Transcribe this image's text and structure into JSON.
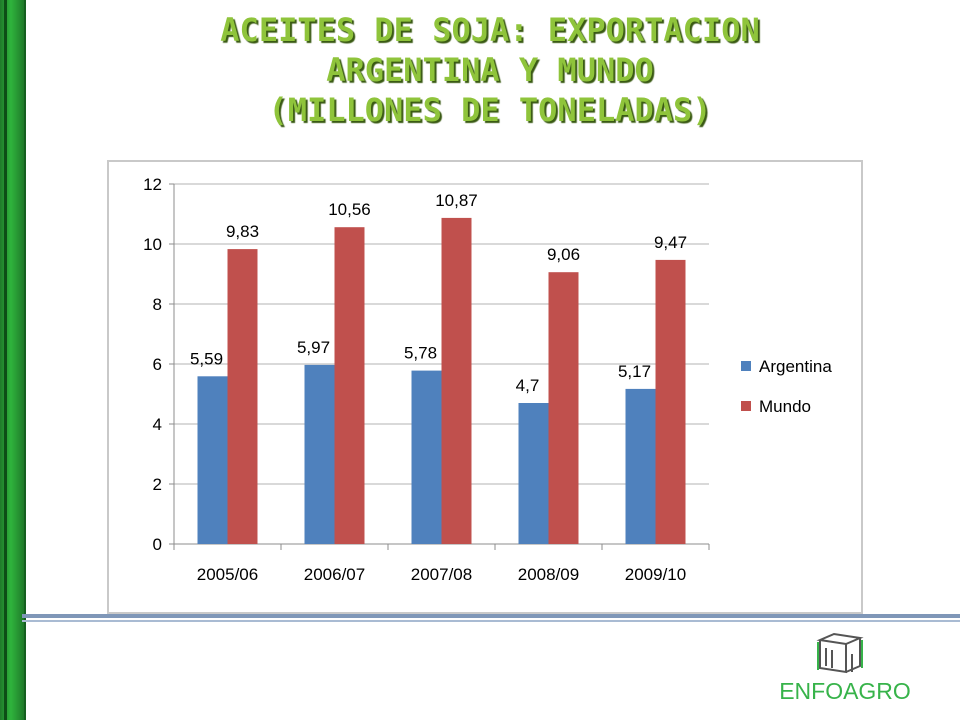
{
  "slide": {
    "title_lines": [
      "ACEITES DE SOJA: EXPORTACION",
      "ARGENTINA Y  MUNDO",
      "(MILLONES DE TONELADAS)"
    ],
    "logo_text": "ENFOAGRO",
    "accent_color": "#8fc43b",
    "sidebar_color": "#2fb43c"
  },
  "chart_data": {
    "type": "bar",
    "title": "",
    "xlabel": "",
    "ylabel": "",
    "categories": [
      "2005/06",
      "2006/07",
      "2007/08",
      "2008/09",
      "2009/10"
    ],
    "series": [
      {
        "name": "Argentina",
        "color": "#4f81bd",
        "values": [
          5.59,
          5.97,
          5.78,
          4.7,
          5.17
        ],
        "labels": [
          "5,59",
          "5,97",
          "5,78",
          "4,7",
          "5,17"
        ]
      },
      {
        "name": "Mundo",
        "color": "#c0504d",
        "values": [
          9.83,
          10.56,
          10.87,
          9.06,
          9.47
        ],
        "labels": [
          "9,83",
          "10,56",
          "10,87",
          "9,06",
          "9,47"
        ]
      }
    ],
    "ylim": [
      0,
      12
    ],
    "yticks": [
      0,
      2,
      4,
      6,
      8,
      10,
      12
    ],
    "ytick_labels": [
      "0",
      "2",
      "4",
      "6",
      "8",
      "10",
      "12"
    ],
    "grid": true,
    "legend_position": "right"
  }
}
